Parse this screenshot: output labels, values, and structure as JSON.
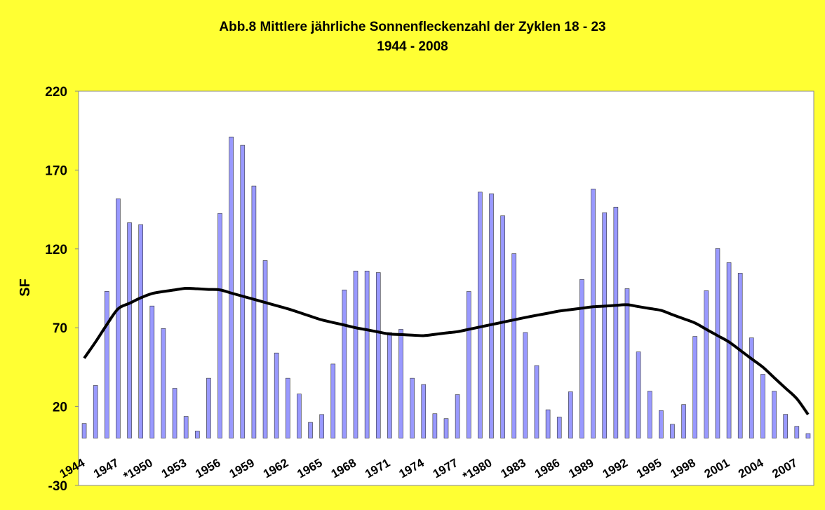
{
  "chart_data": {
    "type": "bar",
    "title": "Abb.8 Mittlere jährliche Sonnenfleckenzahl der Zyklen 18 - 23",
    "subtitle": "1944 - 2008",
    "y_label": "SF",
    "categories": [
      "1944",
      null,
      null,
      "1947",
      null,
      null,
      "*1950",
      null,
      null,
      "1953",
      null,
      null,
      "1956",
      null,
      null,
      "1959",
      null,
      null,
      "1962",
      null,
      null,
      "1965",
      null,
      null,
      "1968",
      null,
      null,
      "1971",
      null,
      null,
      "1974",
      null,
      null,
      "1977",
      null,
      null,
      "*1980",
      null,
      null,
      "1983",
      null,
      null,
      "1986",
      null,
      null,
      "1989",
      null,
      null,
      "1992",
      null,
      null,
      "1995",
      null,
      null,
      "1998",
      null,
      null,
      "2001",
      null,
      null,
      "2004",
      null,
      null,
      "2007",
      null
    ],
    "values": [
      9.3,
      33.4,
      93.1,
      151.8,
      136.6,
      135.4,
      83.8,
      69.5,
      31.6,
      13.8,
      4.5,
      38,
      142.5,
      191,
      185.7,
      159.9,
      112.6,
      54,
      38,
      28,
      10,
      15,
      47,
      94,
      106,
      106,
      105,
      67,
      69,
      38,
      34,
      15.5,
      12.4,
      27.6,
      93,
      156,
      155,
      141,
      117,
      67,
      46,
      18,
      13.4,
      29.4,
      100.6,
      158,
      143,
      146.5,
      94.8,
      54.7,
      29.8,
      17.5,
      8.8,
      21.3,
      64.5,
      93.5,
      120.2,
      111.3,
      104.6,
      63.6,
      40.5,
      29.8,
      15.1,
      7.5,
      2.9
    ],
    "color": "#9999ff",
    "trend": {
      "color": "#000000",
      "values": [
        50.7,
        61,
        72,
        82,
        85.5,
        89,
        91.7,
        93,
        94,
        95,
        94.7,
        94.3,
        94,
        92,
        90,
        88,
        86,
        84,
        82,
        79.7,
        77.3,
        75,
        73.3,
        71.7,
        70,
        68.7,
        67.3,
        66,
        65.7,
        65.3,
        65,
        65.8,
        66.7,
        67.5,
        69,
        70.5,
        72,
        73.5,
        75,
        76.5,
        77.9,
        79.2,
        80.6,
        81.5,
        82.4,
        83.3,
        83.7,
        84.2,
        84.6,
        83.4,
        82.2,
        81,
        78.3,
        75.7,
        73,
        69,
        65,
        61,
        55.7,
        50.3,
        45,
        38.3,
        31.7,
        25,
        15
      ]
    },
    "ylim": [
      -30,
      220
    ],
    "yticks": [
      -30,
      20,
      70,
      120,
      170,
      220
    ],
    "grid": false
  }
}
